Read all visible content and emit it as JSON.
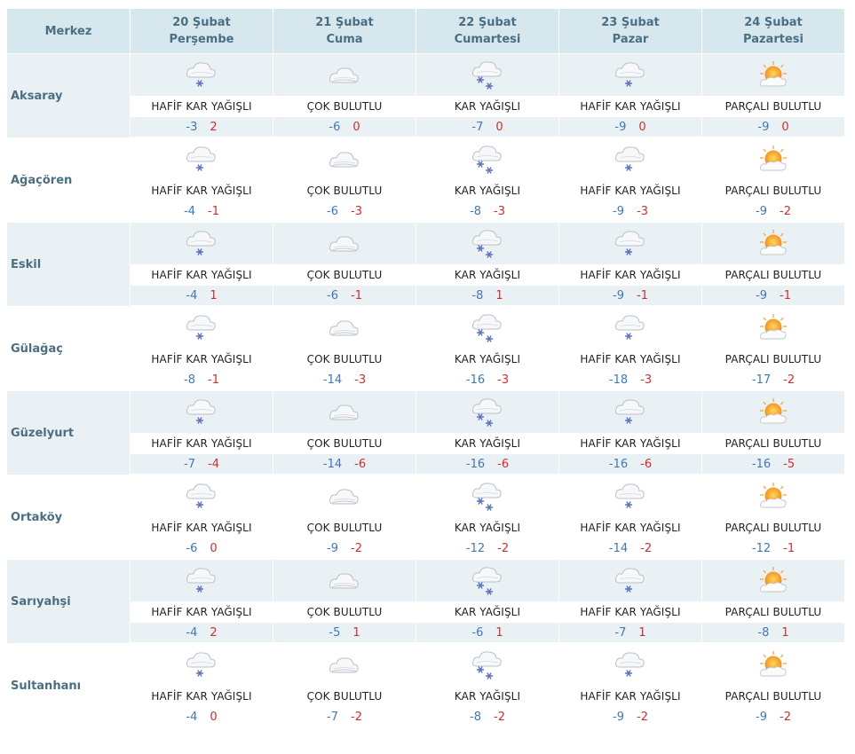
{
  "header": {
    "merkez_label": "Merkez",
    "days": [
      {
        "date": "20 Şubat",
        "weekday": "Perşembe"
      },
      {
        "date": "21 Şubat",
        "weekday": "Cuma"
      },
      {
        "date": "22 Şubat",
        "weekday": "Cumartesi"
      },
      {
        "date": "23 Şubat",
        "weekday": "Pazar"
      },
      {
        "date": "24 Şubat",
        "weekday": "Pazartesi"
      }
    ]
  },
  "conditions": {
    "light_snow": {
      "label": "HAFİF KAR YAĞIŞLI",
      "icon": "light-snow-icon"
    },
    "cloudy": {
      "label": "ÇOK BULUTLU",
      "icon": "cloudy-icon"
    },
    "snow": {
      "label": "KAR YAĞIŞLI",
      "icon": "snow-icon"
    },
    "partly_cloudy": {
      "label": "PARÇALI BULUTLU",
      "icon": "partly-cloudy-icon"
    }
  },
  "colors": {
    "min_temp": "#3f77b8",
    "max_temp": "#d32c2c",
    "header_bg": "#d7e7ee",
    "stripe_bg": "#eaf1f5"
  },
  "rows": [
    {
      "name": "Aksaray",
      "days": [
        {
          "cond": "light_snow",
          "min": "-3",
          "max": "2"
        },
        {
          "cond": "cloudy",
          "min": "-6",
          "max": "0"
        },
        {
          "cond": "snow",
          "min": "-7",
          "max": "0"
        },
        {
          "cond": "light_snow",
          "min": "-9",
          "max": "0"
        },
        {
          "cond": "partly_cloudy",
          "min": "-9",
          "max": "0"
        }
      ]
    },
    {
      "name": "Ağaçören",
      "days": [
        {
          "cond": "light_snow",
          "min": "-4",
          "max": "-1"
        },
        {
          "cond": "cloudy",
          "min": "-6",
          "max": "-3"
        },
        {
          "cond": "snow",
          "min": "-8",
          "max": "-3"
        },
        {
          "cond": "light_snow",
          "min": "-9",
          "max": "-3"
        },
        {
          "cond": "partly_cloudy",
          "min": "-9",
          "max": "-2"
        }
      ]
    },
    {
      "name": "Eskil",
      "days": [
        {
          "cond": "light_snow",
          "min": "-4",
          "max": "1"
        },
        {
          "cond": "cloudy",
          "min": "-6",
          "max": "-1"
        },
        {
          "cond": "snow",
          "min": "-8",
          "max": "1"
        },
        {
          "cond": "light_snow",
          "min": "-9",
          "max": "-1"
        },
        {
          "cond": "partly_cloudy",
          "min": "-9",
          "max": "-1"
        }
      ]
    },
    {
      "name": "Gülağaç",
      "days": [
        {
          "cond": "light_snow",
          "min": "-8",
          "max": "-1"
        },
        {
          "cond": "cloudy",
          "min": "-14",
          "max": "-3"
        },
        {
          "cond": "snow",
          "min": "-16",
          "max": "-3"
        },
        {
          "cond": "light_snow",
          "min": "-18",
          "max": "-3"
        },
        {
          "cond": "partly_cloudy",
          "min": "-17",
          "max": "-2"
        }
      ]
    },
    {
      "name": "Güzelyurt",
      "days": [
        {
          "cond": "light_snow",
          "min": "-7",
          "max": "-4"
        },
        {
          "cond": "cloudy",
          "min": "-14",
          "max": "-6"
        },
        {
          "cond": "snow",
          "min": "-16",
          "max": "-6"
        },
        {
          "cond": "light_snow",
          "min": "-16",
          "max": "-6"
        },
        {
          "cond": "partly_cloudy",
          "min": "-16",
          "max": "-5"
        }
      ]
    },
    {
      "name": "Ortaköy",
      "days": [
        {
          "cond": "light_snow",
          "min": "-6",
          "max": "0"
        },
        {
          "cond": "cloudy",
          "min": "-9",
          "max": "-2"
        },
        {
          "cond": "snow",
          "min": "-12",
          "max": "-2"
        },
        {
          "cond": "light_snow",
          "min": "-14",
          "max": "-2"
        },
        {
          "cond": "partly_cloudy",
          "min": "-12",
          "max": "-1"
        }
      ]
    },
    {
      "name": "Sarıyahşi",
      "days": [
        {
          "cond": "light_snow",
          "min": "-4",
          "max": "2"
        },
        {
          "cond": "cloudy",
          "min": "-5",
          "max": "1"
        },
        {
          "cond": "snow",
          "min": "-6",
          "max": "1"
        },
        {
          "cond": "light_snow",
          "min": "-7",
          "max": "1"
        },
        {
          "cond": "partly_cloudy",
          "min": "-8",
          "max": "1"
        }
      ]
    },
    {
      "name": "Sultanhanı",
      "days": [
        {
          "cond": "light_snow",
          "min": "-4",
          "max": "0"
        },
        {
          "cond": "cloudy",
          "min": "-7",
          "max": "-2"
        },
        {
          "cond": "snow",
          "min": "-8",
          "max": "-2"
        },
        {
          "cond": "light_snow",
          "min": "-9",
          "max": "-2"
        },
        {
          "cond": "partly_cloudy",
          "min": "-9",
          "max": "-2"
        }
      ]
    }
  ]
}
